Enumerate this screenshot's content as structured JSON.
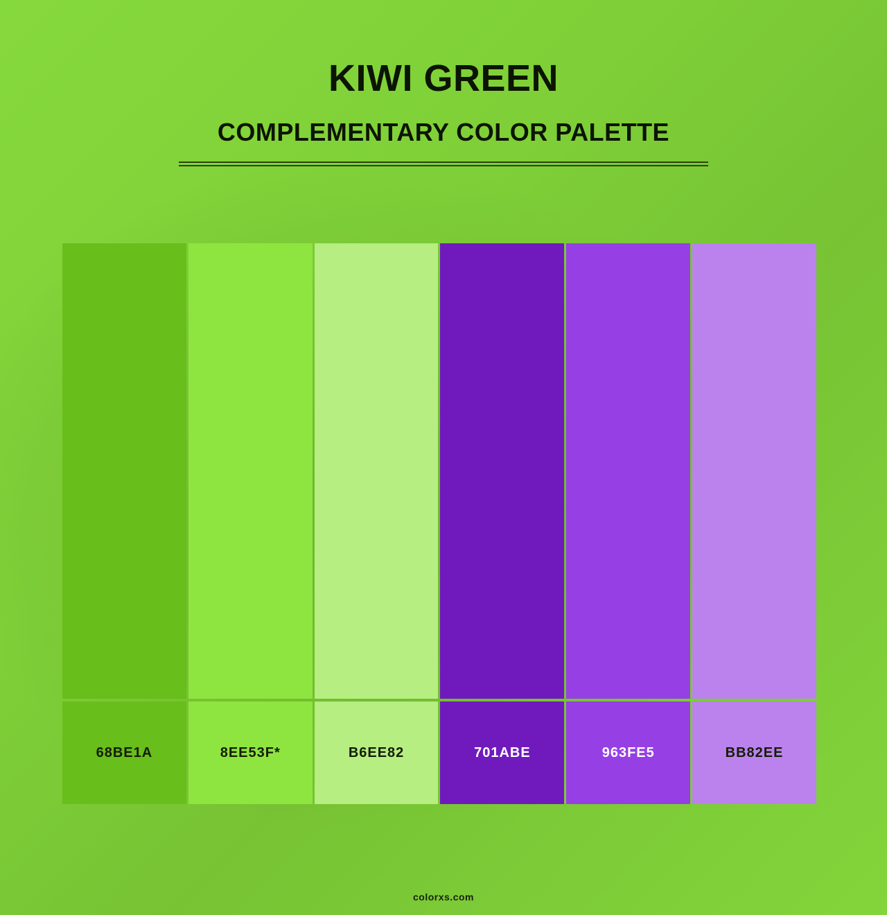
{
  "header": {
    "title": "KIWI GREEN",
    "subtitle": "COMPLEMENTARY COLOR PALETTE"
  },
  "palette": {
    "name": "Kiwi Green Complementary",
    "swatches": [
      {
        "label": "68BE1A",
        "hex": "#68BE1A",
        "label_color": "#141c06",
        "is_base": false
      },
      {
        "label": "8EE53F*",
        "hex": "#8EE53F",
        "label_color": "#141c06",
        "is_base": true
      },
      {
        "label": "B6EE82",
        "hex": "#B6EE82",
        "label_color": "#141c06",
        "is_base": false
      },
      {
        "label": "701ABE",
        "hex": "#701ABE",
        "label_color": "#ffffff",
        "is_base": false
      },
      {
        "label": "963FE5",
        "hex": "#963FE5",
        "label_color": "#ffffff",
        "is_base": false
      },
      {
        "label": "BB82EE",
        "hex": "#BB82EE",
        "label_color": "#141c06",
        "is_base": false
      }
    ]
  },
  "footer": {
    "site": "colorxs.com"
  },
  "colors": {
    "background_bright": "#86d93c",
    "background_dark": "#6fb42f",
    "heading_text": "#0c1403",
    "divider": "#2c430f"
  }
}
